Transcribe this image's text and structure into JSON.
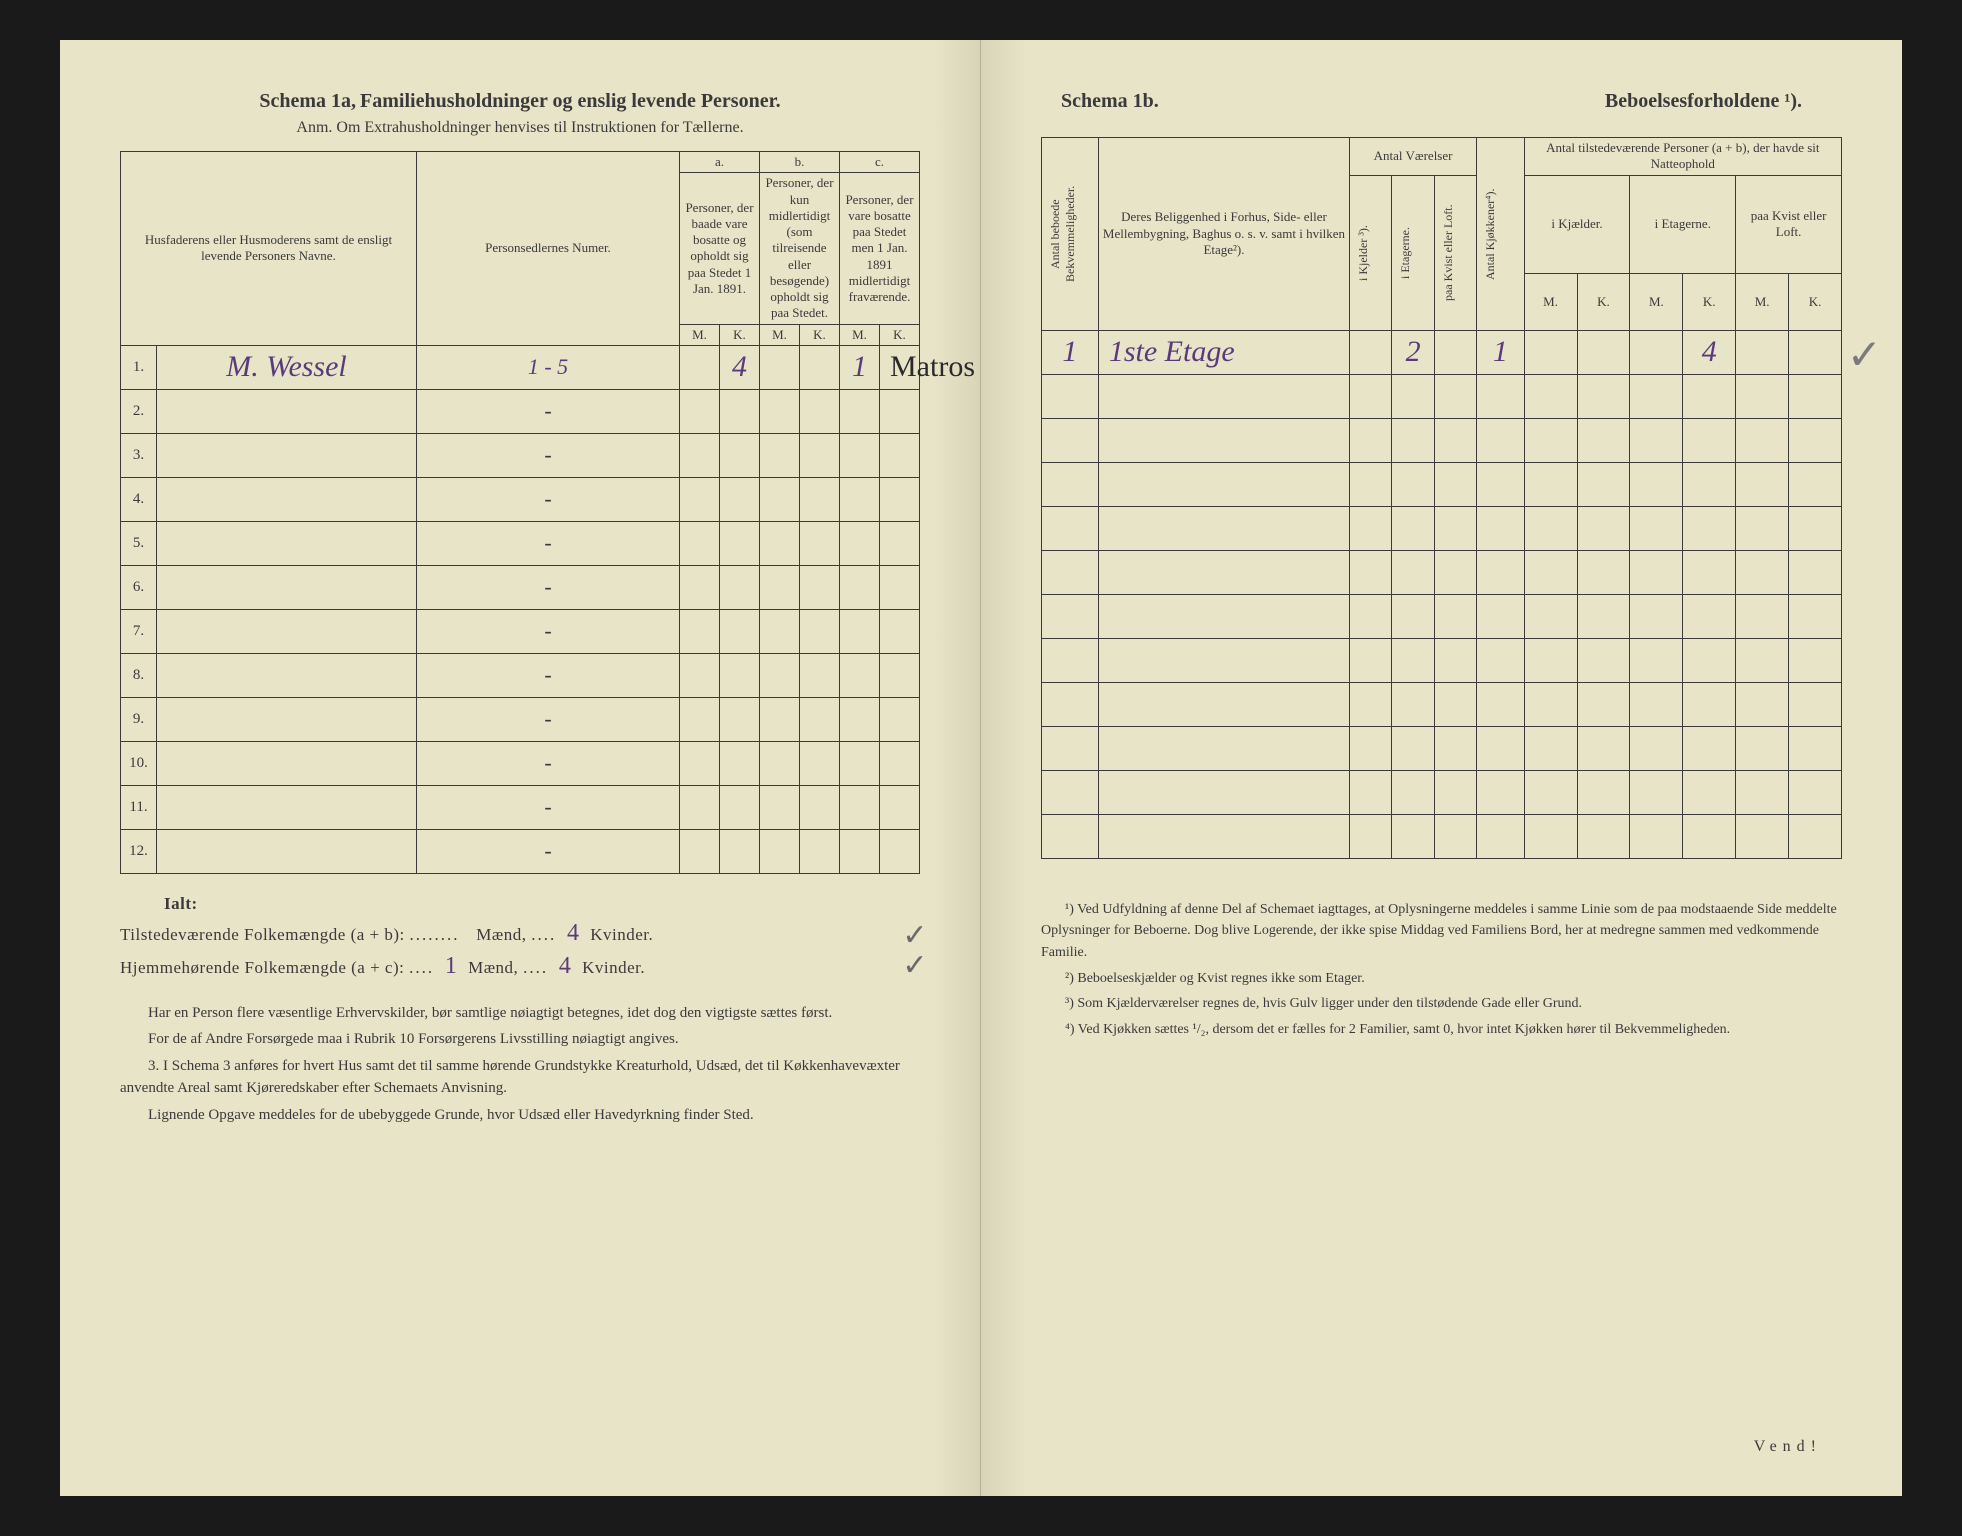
{
  "left": {
    "schema_label": "Schema 1a,",
    "title": "Familiehusholdninger og enslig levende Personer.",
    "subtitle": "Anm. Om Extrahusholdninger henvises til Instruktionen for Tællerne.",
    "headers": {
      "col1": "Husfaderens eller Husmoderens samt de ensligt levende Personers Navne.",
      "col2": "Personsedlernes Numer.",
      "group_a": "a.",
      "group_a_text": "Personer, der baade vare bosatte og opholdt sig paa Stedet 1 Jan. 1891.",
      "group_b": "b.",
      "group_b_text": "Personer, der kun midlertidigt (som tilreisende eller besøgende) opholdt sig paa Stedet.",
      "group_c": "c.",
      "group_c_text": "Personer, der vare bosatte paa Stedet men 1 Jan. 1891 midlertidigt fraværende.",
      "m": "M.",
      "k": "K."
    },
    "rows": [
      {
        "num": "1.",
        "name": "M. Wessel",
        "numer": "1 - 5",
        "a_m": "",
        "a_k": "4",
        "b_m": "",
        "b_k": "",
        "c_m": "1",
        "c_k": "",
        "extra": "Matros"
      },
      {
        "num": "2.",
        "name": "",
        "numer": "-"
      },
      {
        "num": "3.",
        "name": "",
        "numer": "-"
      },
      {
        "num": "4.",
        "name": "",
        "numer": "-"
      },
      {
        "num": "5.",
        "name": "",
        "numer": "-"
      },
      {
        "num": "6.",
        "name": "",
        "numer": "-"
      },
      {
        "num": "7.",
        "name": "",
        "numer": "-"
      },
      {
        "num": "8.",
        "name": "",
        "numer": "-"
      },
      {
        "num": "9.",
        "name": "",
        "numer": "-"
      },
      {
        "num": "10.",
        "name": "",
        "numer": "-"
      },
      {
        "num": "11.",
        "name": "",
        "numer": "-"
      },
      {
        "num": "12.",
        "name": "",
        "numer": "-"
      }
    ],
    "summary": {
      "ialt": "Ialt:",
      "line1_a": "Tilstedeværende Folkemængde (a + b):",
      "line1_m": "",
      "line1_maend": "Mænd,",
      "line1_k": "4",
      "line1_kvinder": "Kvinder.",
      "line2_a": "Hjemmehørende Folkemængde (a + c):",
      "line2_m": "1",
      "line2_maend": "Mænd,",
      "line2_k": "4",
      "line2_kvinder": "Kvinder.",
      "check1": "✓",
      "check2": "✓"
    },
    "notes": {
      "p1": "Har en Person flere væsentlige Erhvervskilder, bør samtlige nøiagtigt betegnes, idet dog den vigtigste sættes først.",
      "p2": "For de af Andre Forsørgede maa i Rubrik 10 Forsørgerens Livsstilling nøiagtigt angives.",
      "p3": "3. I Schema 3 anføres for hvert Hus samt det til samme hørende Grundstykke Kreaturhold, Udsæd, det til Køkkenhavevæxter anvendte Areal samt Kjøreredskaber efter Schemaets Anvisning.",
      "p4": "Lignende Opgave meddeles for de ubebyggede Grunde, hvor Udsæd eller Havedyrkning finder Sted."
    }
  },
  "right": {
    "schema_label": "Schema 1b.",
    "title": "Beboelsesforholdene ¹).",
    "headers": {
      "col1": "Antal beboede Bekvemmeligheder.",
      "col2": "Deres Beliggenhed i Forhus, Side- eller Mellembygning, Baghus o. s. v. samt i hvilken Etage²).",
      "group_vaerelser": "Antal Værelser",
      "v1": "i Kjelder ³).",
      "v2": "i Etagerne.",
      "v3": "paa Kvist eller Loft.",
      "kjok": "Antal Kjøkkener⁴).",
      "group_personer": "Antal tilstedeværende Personer (a + b), der havde sit Natteophold",
      "p1": "i Kjælder.",
      "p2": "i Etagerne.",
      "p3": "paa Kvist eller Loft.",
      "m": "M.",
      "k": "K."
    },
    "rows": [
      {
        "c1": "1",
        "c2": "1ste Etage",
        "v1": "",
        "v2": "2",
        "v3": "",
        "kj": "1",
        "p1m": "",
        "p1k": "",
        "p2m": "",
        "p2k": "4",
        "p3m": "",
        "p3k": ""
      },
      {},
      {},
      {},
      {},
      {},
      {},
      {},
      {},
      {},
      {},
      {}
    ],
    "side_check": "✓",
    "footnotes": {
      "f1": "¹) Ved Udfyldning af denne Del af Schemaet iagttages, at Oplysningerne meddeles i samme Linie som de paa modstaaende Side meddelte Oplysninger for Beboerne. Dog blive Logerende, der ikke spise Middag ved Familiens Bord, her at medregne sammen med vedkommende Familie.",
      "f2": "²) Beboelseskjælder og Kvist regnes ikke som Etager.",
      "f3": "³) Som Kjælderværelser regnes de, hvis Gulv ligger under den tilstødende Gade eller Grund.",
      "f4": "⁴) Ved Kjøkken sættes ¹/₂, dersom det er fælles for 2 Familier, samt 0, hvor intet Kjøkken hører til Bekvemmeligheden."
    },
    "vend": "Vend!"
  }
}
